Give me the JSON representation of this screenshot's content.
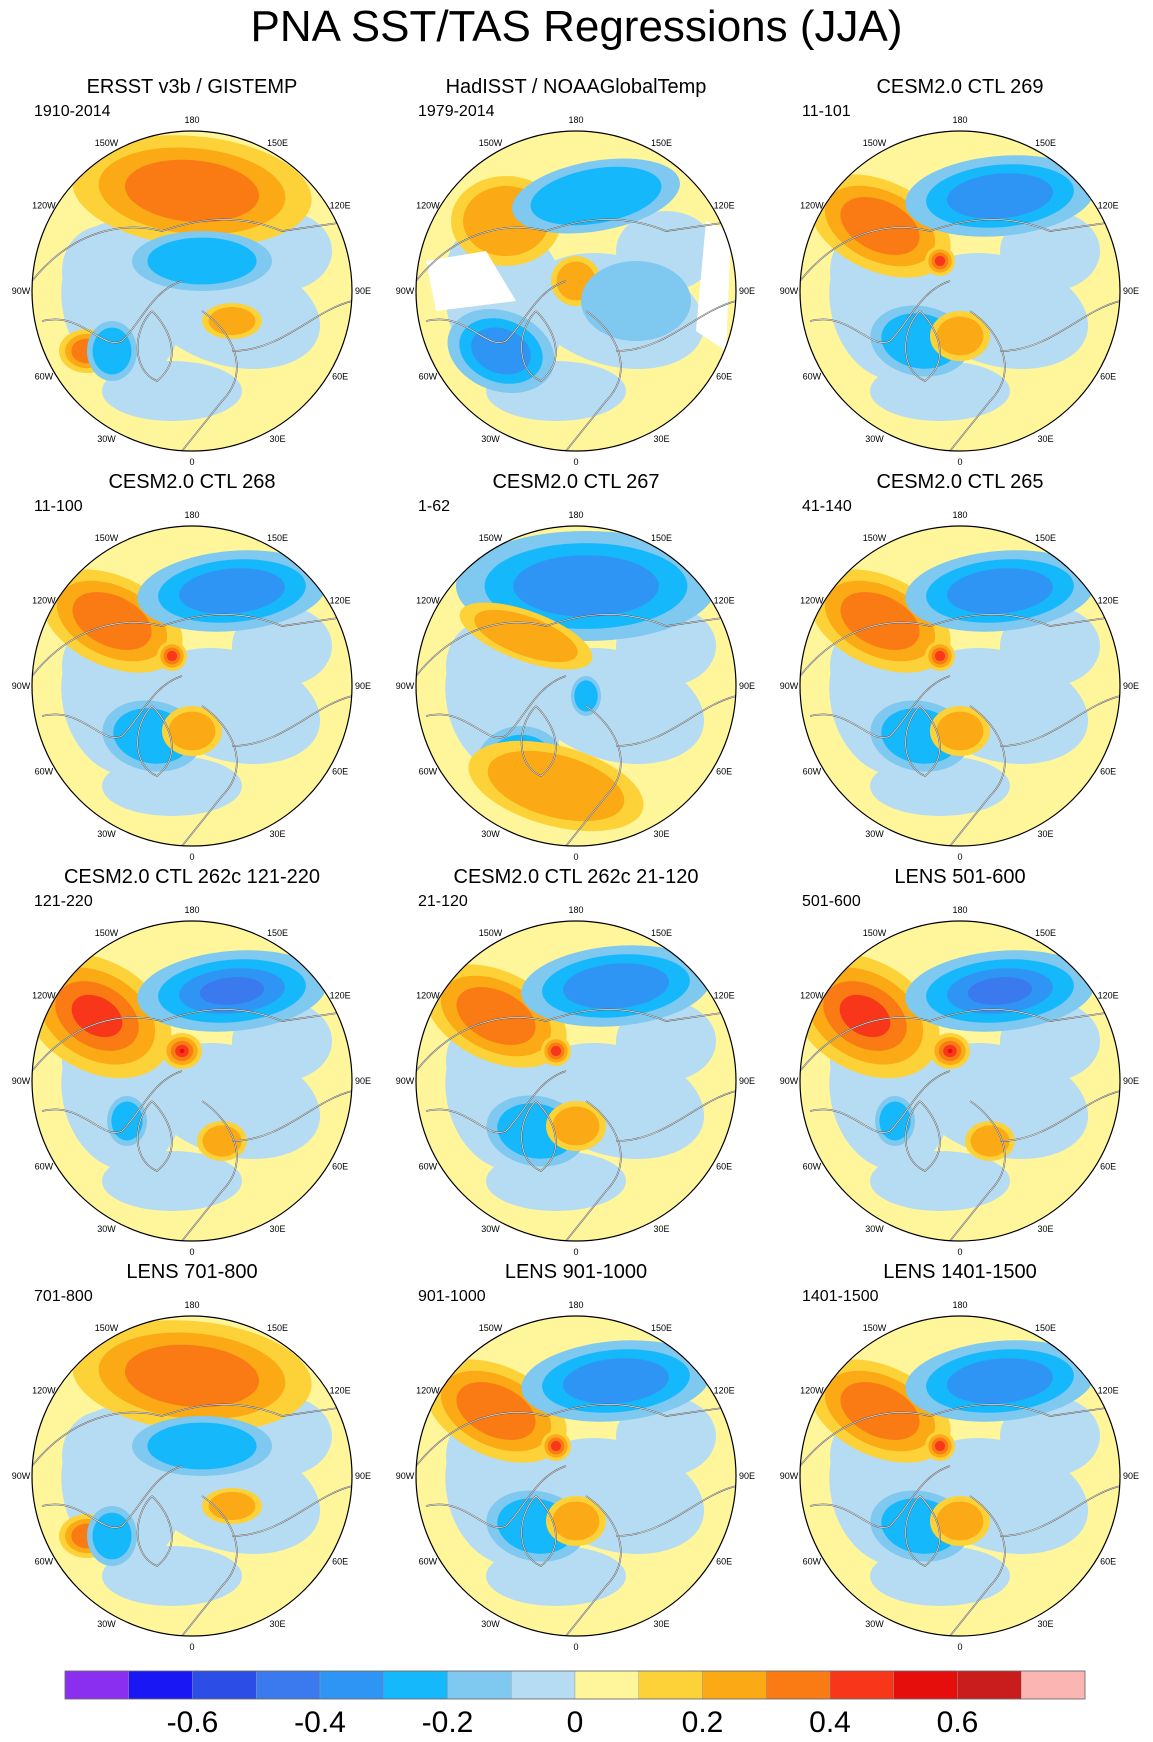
{
  "title": "PNA SST/TAS Regressions (JJA)",
  "lon_labels": [
    "180",
    "150E",
    "120E",
    "90E",
    "60E",
    "30E",
    "0",
    "30W",
    "60W",
    "90W",
    "120W",
    "150W"
  ],
  "panels": [
    {
      "title": "ERSST v3b / GISTEMP",
      "period": "1910-2014",
      "style": "warm-north"
    },
    {
      "title": "HadISST / NOAAGlobalTemp",
      "period": "1979-2014",
      "style": "obs-masked"
    },
    {
      "title": "CESM2.0 CTL 269",
      "period": "11-101",
      "style": "dipole"
    },
    {
      "title": "CESM2.0 CTL 268",
      "period": "11-100",
      "style": "dipole"
    },
    {
      "title": "CESM2.0 CTL 267",
      "period": "1-62",
      "style": "cool-north"
    },
    {
      "title": "CESM2.0 CTL 265",
      "period": "41-140",
      "style": "dipole"
    },
    {
      "title": "CESM2.0 CTL 262c 121-220",
      "period": "121-220",
      "style": "strong-dipole"
    },
    {
      "title": "CESM2.0 CTL 262c 21-120",
      "period": "21-120",
      "style": "dipole"
    },
    {
      "title": "LENS 501-600",
      "period": "501-600",
      "style": "strong-dipole"
    },
    {
      "title": "LENS 701-800",
      "period": "701-800",
      "style": "warm-north"
    },
    {
      "title": "LENS 901-1000",
      "period": "901-1000",
      "style": "dipole"
    },
    {
      "title": "LENS 1401-1500",
      "period": "1401-1500",
      "style": "dipole"
    }
  ],
  "colorbar": {
    "colors": [
      "#8a2ef0",
      "#1a17f5",
      "#2c4ee6",
      "#3a79ee",
      "#2f95f5",
      "#15b8fa",
      "#7fc8f0",
      "#b5dcf2",
      "#fff59a",
      "#fcd238",
      "#fba914",
      "#fa7a14",
      "#f8361a",
      "#e60d0d",
      "#c91c1c",
      "#fbb6b4"
    ],
    "labels": [
      "-0.6",
      "-0.4",
      "-0.2",
      "0",
      "0.2",
      "0.4",
      "0.6"
    ]
  }
}
